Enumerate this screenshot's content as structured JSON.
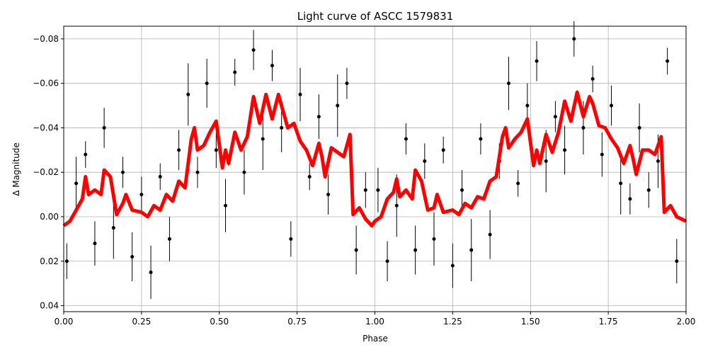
{
  "chart_data": {
    "type": "lightcurve",
    "title": "Light curve of ASCC 1579831",
    "xlabel": "Phase",
    "ylabel": "Δ Magnitude",
    "xlim": [
      0,
      2
    ],
    "ylim": [
      0.0427,
      -0.0857
    ],
    "grid": true,
    "xticks": [
      {
        "value": 0,
        "label": "0.00"
      },
      {
        "value": 0.25,
        "label": "0.25"
      },
      {
        "value": 0.5,
        "label": "0.50"
      },
      {
        "value": 0.75,
        "label": "0.75"
      },
      {
        "value": 1,
        "label": "1.00"
      },
      {
        "value": 1.25,
        "label": "1.25"
      },
      {
        "value": 1.5,
        "label": "1.50"
      },
      {
        "value": 1.75,
        "label": "1.75"
      },
      {
        "value": 2,
        "label": "2.00"
      }
    ],
    "yticks": [
      {
        "value": -0.08,
        "label": "−0.08"
      },
      {
        "value": -0.06,
        "label": "−0.06"
      },
      {
        "value": -0.04,
        "label": "−0.04"
      },
      {
        "value": -0.02,
        "label": "−0.02"
      },
      {
        "value": 0,
        "label": "0.00"
      },
      {
        "value": 0.02,
        "label": "0.02"
      },
      {
        "value": 0.04,
        "label": "0.04"
      }
    ],
    "observations": {
      "color": "#000000",
      "x": [
        0.01,
        0.04,
        0.07,
        0.1,
        0.13,
        0.16,
        0.19,
        0.22,
        0.25,
        0.28,
        0.31,
        0.34,
        0.37,
        0.4,
        0.43,
        0.46,
        0.49,
        0.52,
        0.55,
        0.58,
        0.61,
        0.64,
        0.67,
        0.7,
        0.73,
        0.76,
        0.79,
        0.82,
        0.85,
        0.88,
        0.91,
        0.94,
        0.97,
        1.01,
        1.04,
        1.07,
        1.1,
        1.13,
        1.16,
        1.19,
        1.22,
        1.25,
        1.28,
        1.31,
        1.34,
        1.37,
        1.4,
        1.43,
        1.46,
        1.49,
        1.52,
        1.55,
        1.58,
        1.61,
        1.64,
        1.67,
        1.7,
        1.73,
        1.76,
        1.79,
        1.82,
        1.85,
        1.88,
        1.91,
        1.94,
        1.97
      ],
      "values": [
        0.02,
        -0.015,
        -0.028,
        0.012,
        -0.04,
        0.005,
        -0.02,
        0.018,
        -0.01,
        0.025,
        -0.018,
        0.01,
        -0.03,
        -0.055,
        -0.02,
        -0.06,
        -0.03,
        -0.005,
        -0.065,
        -0.02,
        -0.075,
        -0.035,
        -0.068,
        -0.04,
        0.01,
        -0.055,
        -0.018,
        -0.045,
        -0.01,
        -0.05,
        -0.06,
        0.015,
        -0.012,
        -0.012,
        0.02,
        -0.005,
        -0.035,
        0.015,
        -0.025,
        0.01,
        -0.03,
        0.022,
        -0.012,
        0.015,
        -0.035,
        0.008,
        -0.025,
        -0.06,
        -0.015,
        -0.05,
        -0.07,
        -0.025,
        -0.045,
        -0.03,
        -0.08,
        -0.04,
        -0.062,
        -0.028,
        -0.05,
        -0.015,
        -0.008,
        -0.04,
        -0.012,
        -0.025,
        -0.07,
        0.02
      ],
      "errors": [
        0.008,
        0.012,
        0.006,
        0.01,
        0.009,
        0.014,
        0.007,
        0.011,
        0.008,
        0.012,
        0.006,
        0.01,
        0.009,
        0.014,
        0.007,
        0.011,
        0.008,
        0.012,
        0.006,
        0.01,
        0.009,
        0.014,
        0.007,
        0.011,
        0.008,
        0.012,
        0.006,
        0.01,
        0.009,
        0.014,
        0.007,
        0.011,
        0.008,
        0.01,
        0.009,
        0.014,
        0.007,
        0.011,
        0.008,
        0.012,
        0.006,
        0.01,
        0.009,
        0.014,
        0.007,
        0.011,
        0.008,
        0.012,
        0.006,
        0.01,
        0.009,
        0.014,
        0.007,
        0.011,
        0.008,
        0.012,
        0.006,
        0.01,
        0.009,
        0.014,
        0.007,
        0.011,
        0.008,
        0.012,
        0.006,
        0.01
      ]
    },
    "binned": {
      "color": "#ff0000",
      "x": [
        0.0,
        0.02,
        0.04,
        0.06,
        0.07,
        0.08,
        0.1,
        0.12,
        0.13,
        0.15,
        0.17,
        0.19,
        0.2,
        0.22,
        0.25,
        0.27,
        0.29,
        0.31,
        0.33,
        0.35,
        0.37,
        0.39,
        0.41,
        0.42,
        0.43,
        0.45,
        0.47,
        0.49,
        0.51,
        0.52,
        0.53,
        0.55,
        0.57,
        0.59,
        0.61,
        0.63,
        0.65,
        0.67,
        0.69,
        0.7,
        0.72,
        0.74,
        0.76,
        0.78,
        0.8,
        0.82,
        0.83,
        0.84,
        0.86,
        0.88,
        0.9,
        0.92,
        0.93,
        0.95,
        0.97,
        0.99,
        1.0,
        1.02,
        1.04,
        1.06,
        1.07,
        1.08,
        1.1,
        1.12,
        1.13,
        1.15,
        1.17,
        1.19,
        1.2,
        1.22,
        1.25,
        1.27,
        1.29,
        1.31,
        1.33,
        1.35,
        1.37,
        1.39,
        1.41,
        1.42,
        1.43,
        1.45,
        1.47,
        1.49,
        1.51,
        1.52,
        1.53,
        1.55,
        1.57,
        1.59,
        1.61,
        1.63,
        1.65,
        1.67,
        1.69,
        1.7,
        1.72,
        1.74,
        1.76,
        1.78,
        1.8,
        1.82,
        1.83,
        1.84,
        1.86,
        1.88,
        1.9,
        1.92,
        1.93,
        1.95,
        1.97,
        2.0
      ],
      "values": [
        0.004,
        0.002,
        -0.003,
        -0.008,
        -0.018,
        -0.01,
        -0.012,
        -0.01,
        -0.021,
        -0.018,
        -0.001,
        -0.006,
        -0.01,
        -0.003,
        -0.002,
        0.0,
        -0.005,
        -0.003,
        -0.01,
        -0.007,
        -0.016,
        -0.013,
        -0.035,
        -0.04,
        -0.03,
        -0.032,
        -0.038,
        -0.043,
        -0.022,
        -0.03,
        -0.024,
        -0.038,
        -0.03,
        -0.036,
        -0.054,
        -0.042,
        -0.055,
        -0.044,
        -0.055,
        -0.05,
        -0.04,
        -0.042,
        -0.034,
        -0.03,
        -0.023,
        -0.033,
        -0.027,
        -0.018,
        -0.031,
        -0.029,
        -0.027,
        -0.037,
        -0.001,
        -0.004,
        0.001,
        0.004,
        0.002,
        0.0,
        -0.008,
        -0.011,
        -0.017,
        -0.009,
        -0.012,
        -0.008,
        -0.021,
        -0.016,
        -0.003,
        -0.004,
        -0.01,
        -0.002,
        -0.003,
        -0.001,
        -0.006,
        -0.004,
        -0.009,
        -0.008,
        -0.016,
        -0.018,
        -0.036,
        -0.04,
        -0.031,
        -0.035,
        -0.038,
        -0.044,
        -0.023,
        -0.03,
        -0.024,
        -0.037,
        -0.029,
        -0.038,
        -0.052,
        -0.043,
        -0.056,
        -0.045,
        -0.054,
        -0.051,
        -0.041,
        -0.04,
        -0.035,
        -0.031,
        -0.024,
        -0.032,
        -0.026,
        -0.019,
        -0.03,
        -0.03,
        -0.028,
        -0.036,
        -0.002,
        -0.005,
        0.0,
        0.002
      ]
    }
  }
}
